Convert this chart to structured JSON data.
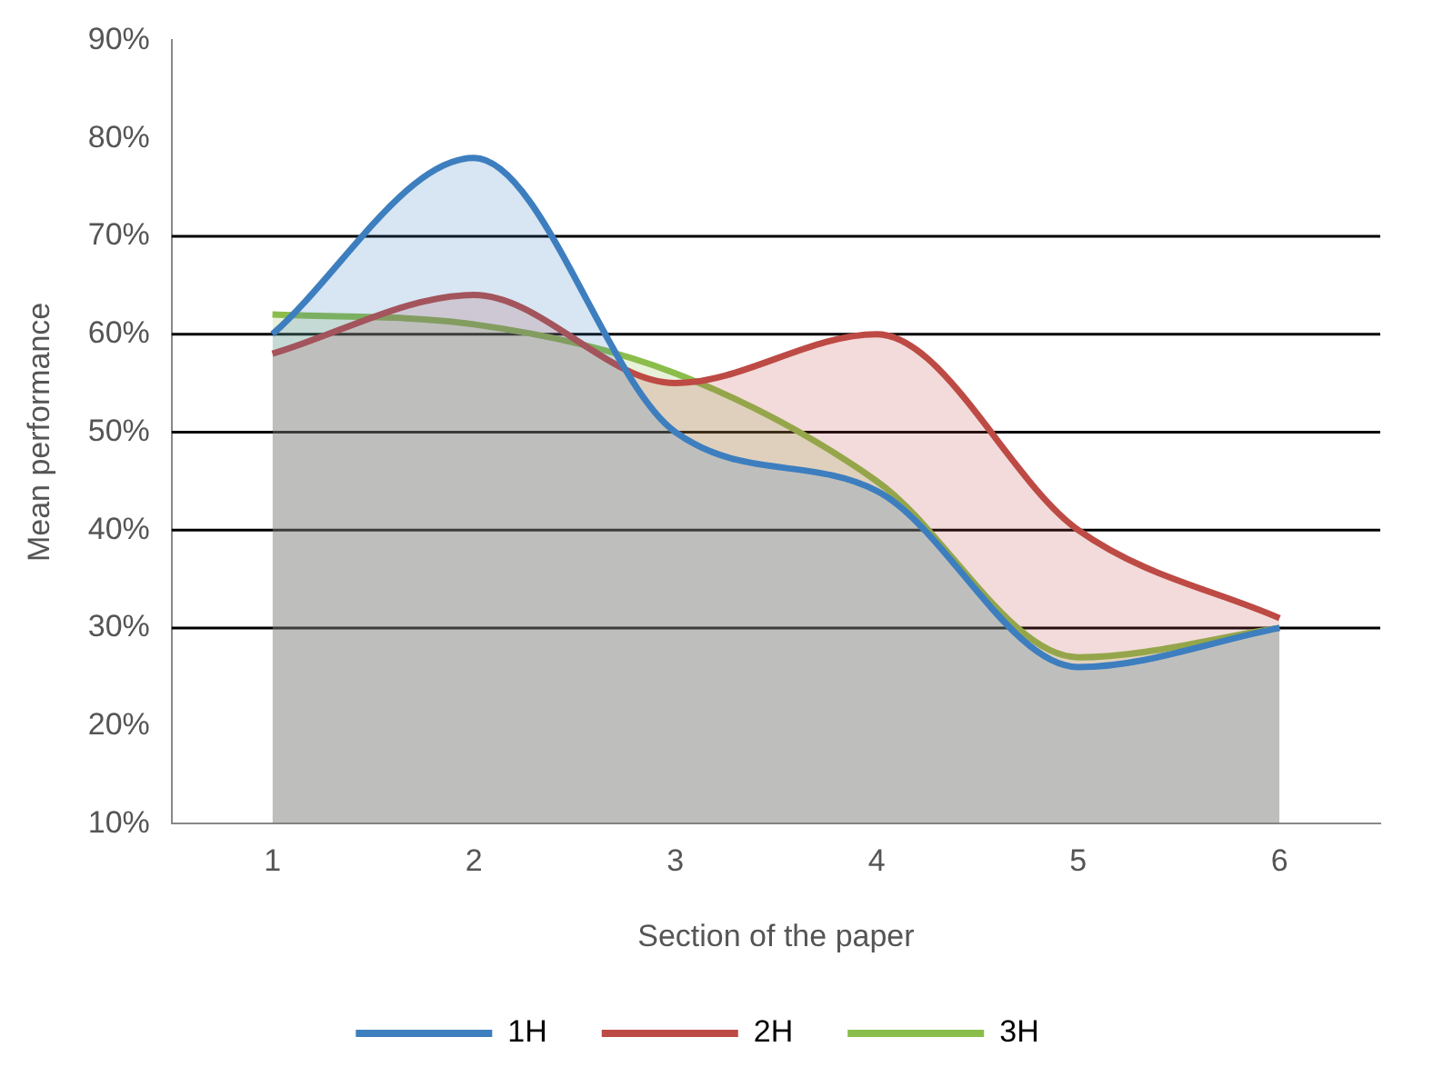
{
  "chart_data": {
    "type": "area",
    "xlabel": "Section of the paper",
    "ylabel": "Mean performance",
    "categories": [
      "1",
      "2",
      "3",
      "4",
      "5",
      "6"
    ],
    "series": [
      {
        "name": "1H",
        "color": "#3d7ebf",
        "values": [
          60,
          78,
          50,
          44,
          26,
          30
        ]
      },
      {
        "name": "2H",
        "color": "#bd4a44",
        "values": [
          58,
          64,
          55,
          60,
          40,
          31
        ]
      },
      {
        "name": "3H",
        "color": "#8bbd4b",
        "values": [
          62,
          61,
          56,
          45,
          27,
          30
        ]
      }
    ],
    "ylim": [
      10,
      90
    ],
    "yticks": [
      {
        "value": 10,
        "label": "10%"
      },
      {
        "value": 20,
        "label": "20%"
      },
      {
        "value": 30,
        "label": "30%"
      },
      {
        "value": 40,
        "label": "40%"
      },
      {
        "value": 50,
        "label": "50%"
      },
      {
        "value": 60,
        "label": "60%"
      },
      {
        "value": 70,
        "label": "70%"
      },
      {
        "value": 80,
        "label": "80%"
      },
      {
        "value": 90,
        "label": "90%"
      }
    ],
    "ref_lines": [
      {
        "axis": "y",
        "value": 30,
        "label": null,
        "color": "#000000"
      },
      {
        "axis": "y",
        "value": 40,
        "label": null,
        "color": "#000000"
      },
      {
        "axis": "y",
        "value": 50,
        "label": null,
        "color": "#000000"
      },
      {
        "axis": "y",
        "value": 60,
        "label": null,
        "color": "#000000"
      },
      {
        "axis": "y",
        "value": 70,
        "label": null,
        "color": "#000000"
      }
    ],
    "grid": false,
    "legend": "bottom",
    "marker": "none",
    "line_style": "solid"
  }
}
